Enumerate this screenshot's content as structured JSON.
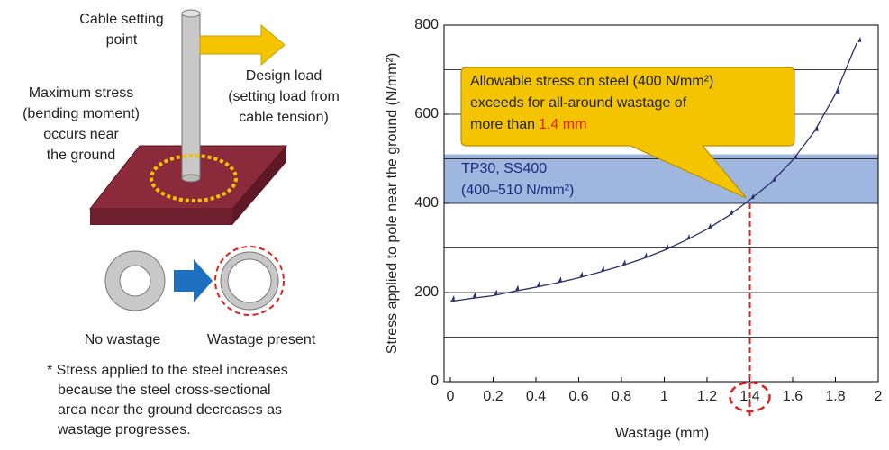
{
  "diagram": {
    "cable_point": [
      "Cable setting",
      "point"
    ],
    "design_load": [
      "Design load",
      "(setting load from",
      "cable tension)"
    ],
    "max_stress": [
      "Maximum stress",
      "(bending moment)",
      "occurs near",
      "the ground"
    ],
    "no_wastage": "No wastage",
    "wastage_present": "Wastage present",
    "note": [
      "* Stress applied to the steel increases",
      "because the steel cross-sectional",
      "area near the ground decreases as",
      "wastage progresses."
    ]
  },
  "chart_data": {
    "type": "line",
    "x_label": "Wastage (mm)",
    "y_label": "Stress applied to pole near the ground (N/mm²)",
    "xlim": [
      0,
      2
    ],
    "ylim": [
      0,
      800
    ],
    "xticks": [
      0,
      0.2,
      0.4,
      0.6,
      0.8,
      1,
      1.2,
      1.4,
      1.6,
      1.8,
      2
    ],
    "yticks": [
      0,
      200,
      400,
      600,
      800
    ],
    "ygrid": [
      100,
      200,
      300,
      400,
      500,
      600,
      700,
      800
    ],
    "x": [
      0,
      0.1,
      0.2,
      0.3,
      0.4,
      0.5,
      0.6,
      0.7,
      0.8,
      0.9,
      1.0,
      1.1,
      1.2,
      1.3,
      1.4,
      1.5,
      1.6,
      1.7,
      1.8,
      1.9
    ],
    "series": [
      {
        "color": "#2a2f6e",
        "values": [
          180,
          187,
          193,
          203,
          212,
          222,
          233,
          246,
          260,
          276,
          295,
          317,
          342,
          372,
          408,
          447,
          497,
          560,
          645,
          760
        ]
      }
    ],
    "band": {
      "range": [
        400,
        510
      ],
      "color": "#7f9fd4",
      "label": [
        "TP30, SS400",
        "(400–510 N/mm²)"
      ]
    },
    "threshold_x": 1.4,
    "callout": {
      "lines": [
        "Allowable stress on steel (400 N/mm²)",
        "exceeds for all-around wastage of",
        "more than "
      ],
      "highlight": "1.4 mm"
    }
  }
}
